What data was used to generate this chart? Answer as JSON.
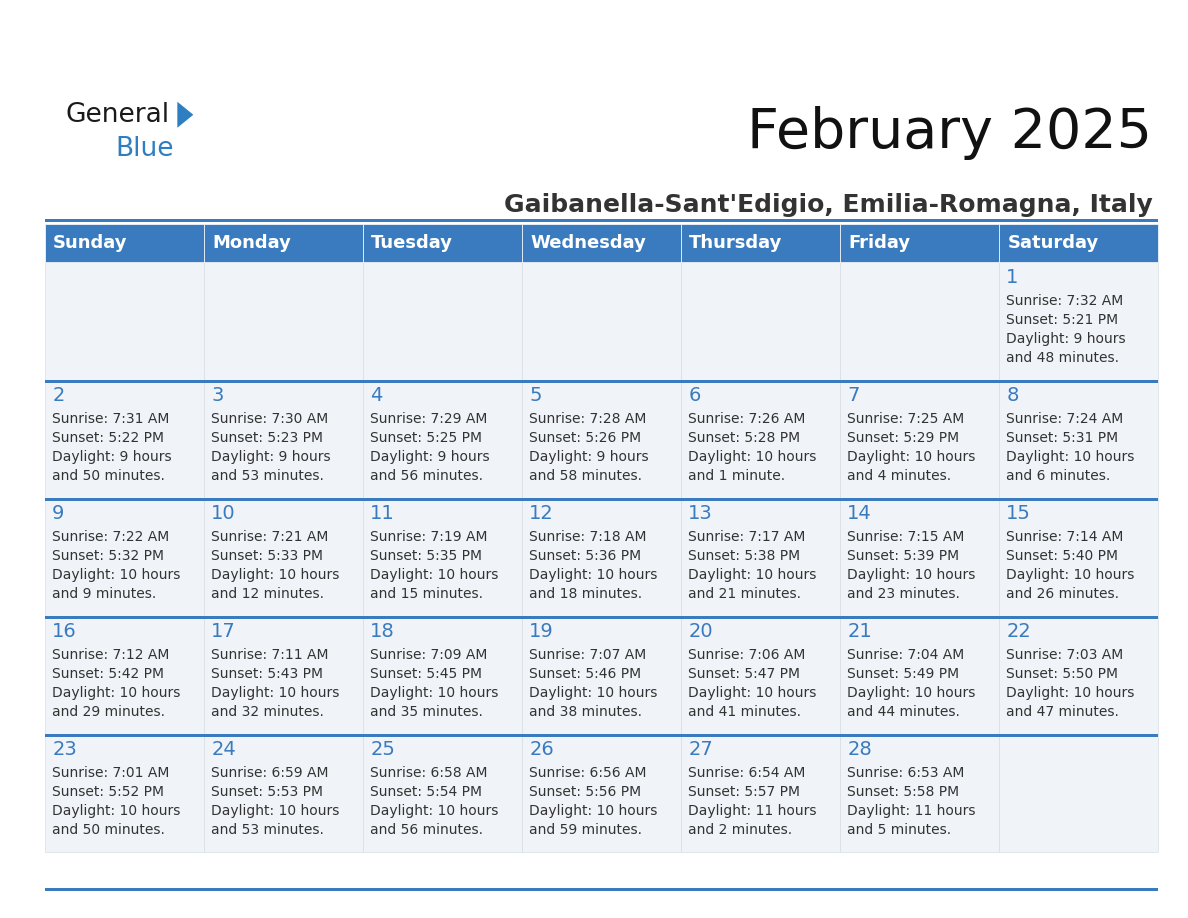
{
  "title": "February 2025",
  "subtitle": "Gaibanella-Sant'Edigio, Emilia-Romagna, Italy",
  "header_bg": "#3a7bbf",
  "header_text_color": "#ffffff",
  "cell_bg": "#f0f4f8",
  "separator_color": "#3a7bbf",
  "day_number_color": "#3a7bbf",
  "text_color": "#333333",
  "days_of_week": [
    "Sunday",
    "Monday",
    "Tuesday",
    "Wednesday",
    "Thursday",
    "Friday",
    "Saturday"
  ],
  "weeks": [
    [
      {
        "day": null,
        "sunrise": null,
        "sunset": null,
        "daylight": null
      },
      {
        "day": null,
        "sunrise": null,
        "sunset": null,
        "daylight": null
      },
      {
        "day": null,
        "sunrise": null,
        "sunset": null,
        "daylight": null
      },
      {
        "day": null,
        "sunrise": null,
        "sunset": null,
        "daylight": null
      },
      {
        "day": null,
        "sunrise": null,
        "sunset": null,
        "daylight": null
      },
      {
        "day": null,
        "sunrise": null,
        "sunset": null,
        "daylight": null
      },
      {
        "day": 1,
        "sunrise": "7:32 AM",
        "sunset": "5:21 PM",
        "daylight": "9 hours\nand 48 minutes."
      }
    ],
    [
      {
        "day": 2,
        "sunrise": "7:31 AM",
        "sunset": "5:22 PM",
        "daylight": "9 hours\nand 50 minutes."
      },
      {
        "day": 3,
        "sunrise": "7:30 AM",
        "sunset": "5:23 PM",
        "daylight": "9 hours\nand 53 minutes."
      },
      {
        "day": 4,
        "sunrise": "7:29 AM",
        "sunset": "5:25 PM",
        "daylight": "9 hours\nand 56 minutes."
      },
      {
        "day": 5,
        "sunrise": "7:28 AM",
        "sunset": "5:26 PM",
        "daylight": "9 hours\nand 58 minutes."
      },
      {
        "day": 6,
        "sunrise": "7:26 AM",
        "sunset": "5:28 PM",
        "daylight": "10 hours\nand 1 minute."
      },
      {
        "day": 7,
        "sunrise": "7:25 AM",
        "sunset": "5:29 PM",
        "daylight": "10 hours\nand 4 minutes."
      },
      {
        "day": 8,
        "sunrise": "7:24 AM",
        "sunset": "5:31 PM",
        "daylight": "10 hours\nand 6 minutes."
      }
    ],
    [
      {
        "day": 9,
        "sunrise": "7:22 AM",
        "sunset": "5:32 PM",
        "daylight": "10 hours\nand 9 minutes."
      },
      {
        "day": 10,
        "sunrise": "7:21 AM",
        "sunset": "5:33 PM",
        "daylight": "10 hours\nand 12 minutes."
      },
      {
        "day": 11,
        "sunrise": "7:19 AM",
        "sunset": "5:35 PM",
        "daylight": "10 hours\nand 15 minutes."
      },
      {
        "day": 12,
        "sunrise": "7:18 AM",
        "sunset": "5:36 PM",
        "daylight": "10 hours\nand 18 minutes."
      },
      {
        "day": 13,
        "sunrise": "7:17 AM",
        "sunset": "5:38 PM",
        "daylight": "10 hours\nand 21 minutes."
      },
      {
        "day": 14,
        "sunrise": "7:15 AM",
        "sunset": "5:39 PM",
        "daylight": "10 hours\nand 23 minutes."
      },
      {
        "day": 15,
        "sunrise": "7:14 AM",
        "sunset": "5:40 PM",
        "daylight": "10 hours\nand 26 minutes."
      }
    ],
    [
      {
        "day": 16,
        "sunrise": "7:12 AM",
        "sunset": "5:42 PM",
        "daylight": "10 hours\nand 29 minutes."
      },
      {
        "day": 17,
        "sunrise": "7:11 AM",
        "sunset": "5:43 PM",
        "daylight": "10 hours\nand 32 minutes."
      },
      {
        "day": 18,
        "sunrise": "7:09 AM",
        "sunset": "5:45 PM",
        "daylight": "10 hours\nand 35 minutes."
      },
      {
        "day": 19,
        "sunrise": "7:07 AM",
        "sunset": "5:46 PM",
        "daylight": "10 hours\nand 38 minutes."
      },
      {
        "day": 20,
        "sunrise": "7:06 AM",
        "sunset": "5:47 PM",
        "daylight": "10 hours\nand 41 minutes."
      },
      {
        "day": 21,
        "sunrise": "7:04 AM",
        "sunset": "5:49 PM",
        "daylight": "10 hours\nand 44 minutes."
      },
      {
        "day": 22,
        "sunrise": "7:03 AM",
        "sunset": "5:50 PM",
        "daylight": "10 hours\nand 47 minutes."
      }
    ],
    [
      {
        "day": 23,
        "sunrise": "7:01 AM",
        "sunset": "5:52 PM",
        "daylight": "10 hours\nand 50 minutes."
      },
      {
        "day": 24,
        "sunrise": "6:59 AM",
        "sunset": "5:53 PM",
        "daylight": "10 hours\nand 53 minutes."
      },
      {
        "day": 25,
        "sunrise": "6:58 AM",
        "sunset": "5:54 PM",
        "daylight": "10 hours\nand 56 minutes."
      },
      {
        "day": 26,
        "sunrise": "6:56 AM",
        "sunset": "5:56 PM",
        "daylight": "10 hours\nand 59 minutes."
      },
      {
        "day": 27,
        "sunrise": "6:54 AM",
        "sunset": "5:57 PM",
        "daylight": "11 hours\nand 2 minutes."
      },
      {
        "day": 28,
        "sunrise": "6:53 AM",
        "sunset": "5:58 PM",
        "daylight": "11 hours\nand 5 minutes."
      },
      {
        "day": null,
        "sunrise": null,
        "sunset": null,
        "daylight": null
      }
    ]
  ],
  "logo_color_general": "#1a1a1a",
  "logo_color_blue": "#2e7fc1",
  "logo_triangle_color": "#2e7fc1",
  "title_fontsize": 40,
  "subtitle_fontsize": 18,
  "header_fontsize": 13,
  "day_num_fontsize": 14,
  "cell_fontsize": 10
}
